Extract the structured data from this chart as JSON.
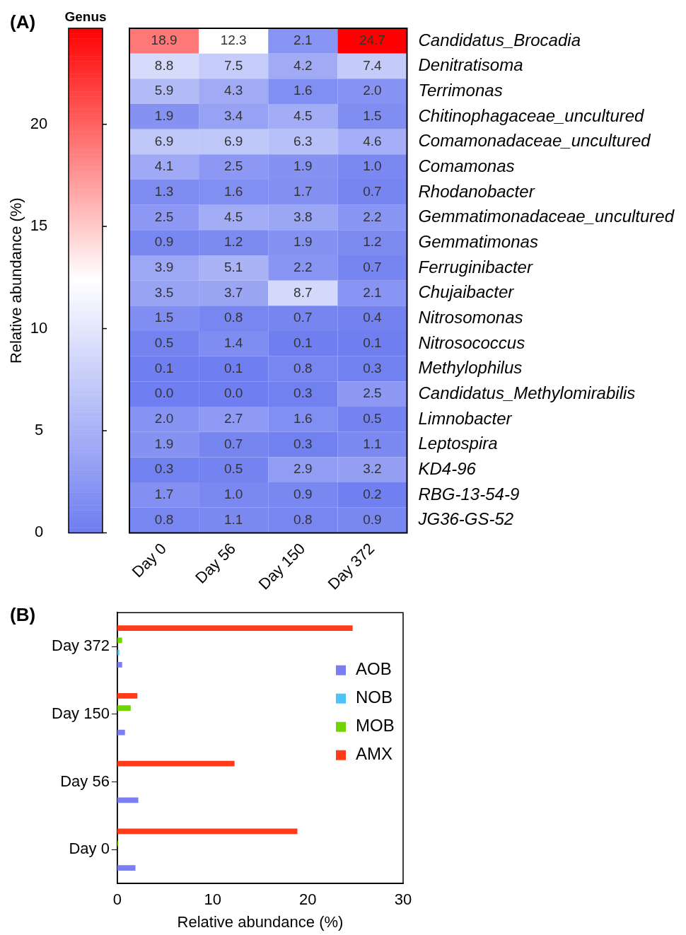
{
  "chart_data": [
    {
      "type": "heatmap",
      "title": "(A)",
      "legend_title": "Genus",
      "clabel": "Relative abundance (%)",
      "categories": [
        "Day 0",
        "Day 56",
        "Day 150",
        "Day 372"
      ],
      "y_categories": [
        "Candidatus_Brocadia",
        "Denitratisoma",
        "Terrimonas",
        "Chitinophagaceae_uncultured",
        "Comamonadaceae_uncultured",
        "Comamonas",
        "Rhodanobacter",
        "Gemmatimonadaceae_uncultured",
        "Gemmatimonas",
        "Ferruginibacter",
        "Chujaibacter",
        "Nitrosomonas",
        "Nitrosococcus",
        "Methylophilus",
        "Candidatus_Methylomirabilis",
        "Limnobacter",
        "Leptospira",
        "KD4-96",
        "RBG-13-54-9",
        "JG36-GS-52"
      ],
      "cells": [
        [
          18.9,
          12.3,
          2.1,
          24.7
        ],
        [
          8.8,
          7.5,
          4.2,
          7.4
        ],
        [
          5.9,
          4.3,
          1.6,
          2.0
        ],
        [
          1.9,
          3.4,
          4.5,
          1.5
        ],
        [
          6.9,
          6.9,
          6.3,
          4.6
        ],
        [
          4.1,
          2.5,
          1.9,
          1.0
        ],
        [
          1.3,
          1.6,
          1.7,
          0.7
        ],
        [
          2.5,
          4.5,
          3.8,
          2.2
        ],
        [
          0.9,
          1.2,
          1.9,
          1.2
        ],
        [
          3.9,
          5.1,
          2.2,
          0.7
        ],
        [
          3.5,
          3.7,
          8.7,
          2.1
        ],
        [
          1.5,
          0.8,
          0.7,
          0.4
        ],
        [
          0.5,
          1.4,
          0.1,
          0.1
        ],
        [
          0.1,
          0.1,
          0.8,
          0.3
        ],
        [
          0.0,
          0.0,
          0.3,
          2.5
        ],
        [
          2.0,
          2.7,
          1.6,
          0.5
        ],
        [
          1.9,
          0.7,
          0.3,
          1.1
        ],
        [
          0.3,
          0.5,
          2.9,
          3.2
        ],
        [
          1.7,
          1.0,
          0.9,
          0.2
        ],
        [
          0.8,
          1.1,
          0.8,
          0.9
        ]
      ],
      "cell_labels": [
        [
          "18.9",
          "12.3",
          "2.1",
          "24.7"
        ],
        [
          "8.8",
          "7.5",
          "4.2",
          "7.4"
        ],
        [
          "5.9",
          "4.3",
          "1.6",
          "2.0"
        ],
        [
          "1.9",
          "3.4",
          "4.5",
          "1.5"
        ],
        [
          "6.9",
          "6.9",
          "6.3",
          "4.6"
        ],
        [
          "4.1",
          "2.5",
          "1.9",
          "1.0"
        ],
        [
          "1.3",
          "1.6",
          "1.7",
          "0.7"
        ],
        [
          "2.5",
          "4.5",
          "3.8",
          "2.2"
        ],
        [
          "0.9",
          "1.2",
          "1.9",
          "1.2"
        ],
        [
          "3.9",
          "5.1",
          "2.2",
          "0.7"
        ],
        [
          "3.5",
          "3.7",
          "8.7",
          "2.1"
        ],
        [
          "1.5",
          "0.8",
          "0.7",
          "0.4"
        ],
        [
          "0.5",
          "1.4",
          "0.1",
          "0.1"
        ],
        [
          "0.1",
          "0.1",
          "0.8",
          "0.3"
        ],
        [
          "0.0",
          "0.0",
          "0.3",
          "2.5"
        ],
        [
          "2.0",
          "2.7",
          "1.6",
          "0.5"
        ],
        [
          "1.9",
          "0.7",
          "0.3",
          "1.1"
        ],
        [
          "0.3",
          "0.5",
          "2.9",
          "3.2"
        ],
        [
          "1.7",
          "1.0",
          "0.9",
          "0.2"
        ],
        [
          "0.8",
          "1.1",
          "0.8",
          "0.9"
        ]
      ],
      "data_labels": true,
      "clim": [
        0,
        24.7
      ],
      "cticks": [
        0,
        5,
        10,
        15,
        20
      ]
    },
    {
      "type": "bar",
      "orientation": "horizontal",
      "title": "(B)",
      "xlabel": "Relative abundance (%)",
      "categories": [
        "Day 372",
        "Day 150",
        "Day 56",
        "Day 0"
      ],
      "series": [
        {
          "name": "AOB",
          "color": "#7b7ef0",
          "values": [
            0.5,
            0.8,
            2.2,
            1.9
          ]
        },
        {
          "name": "NOB",
          "color": "#4fc3f7",
          "values": [
            0.2,
            0,
            0,
            0
          ]
        },
        {
          "name": "MOB",
          "color": "#6fd400",
          "values": [
            0.5,
            1.4,
            0,
            0.1
          ]
        },
        {
          "name": "AMX",
          "color": "#ff3b1a",
          "values": [
            24.7,
            2.1,
            12.3,
            18.9
          ]
        }
      ],
      "xlim": [
        0,
        30
      ],
      "xticks": [
        0,
        10,
        20,
        30
      ],
      "grid": false,
      "legend": "right"
    }
  ]
}
